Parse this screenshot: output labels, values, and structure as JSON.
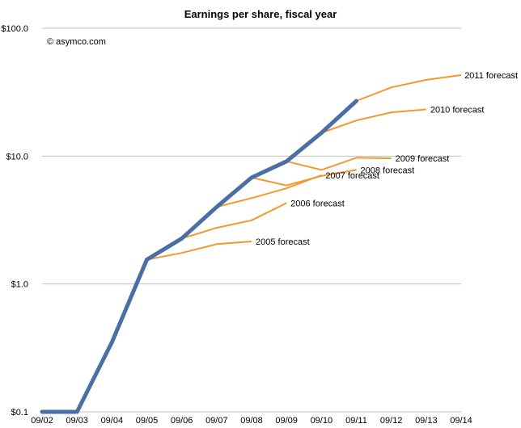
{
  "chart_data": {
    "type": "line",
    "title": "Earnings per share, fiscal year",
    "annotation": "© asymco.com",
    "y_scale": "log",
    "ylim": [
      0.1,
      100
    ],
    "y_ticks": [
      {
        "value": 0.1,
        "label": "$0.1"
      },
      {
        "value": 1,
        "label": "$1.0"
      },
      {
        "value": 10,
        "label": "$10.0"
      },
      {
        "value": 100,
        "label": "$100.0"
      }
    ],
    "categories": [
      "09/02",
      "09/03",
      "09/04",
      "09/05",
      "09/06",
      "09/07",
      "09/08",
      "09/09",
      "09/10",
      "09/11",
      "09/12",
      "09/13",
      "09/14"
    ],
    "grid": true,
    "colors": {
      "actual": "#4a6fa5",
      "forecast": "#f29a2e",
      "grid": "#bfbfbf"
    },
    "series": [
      {
        "kind": "actual",
        "points": [
          [
            "09/02",
            0.1
          ],
          [
            "09/03",
            0.1
          ],
          [
            "09/04",
            0.35
          ],
          [
            "09/05",
            1.55
          ],
          [
            "09/06",
            2.27
          ],
          [
            "09/07",
            4.0
          ],
          [
            "09/08",
            6.8
          ],
          [
            "09/09",
            9.1
          ],
          [
            "09/10",
            15.2
          ],
          [
            "09/11",
            27.0
          ]
        ]
      },
      {
        "name": "2005 forecast",
        "kind": "forecast",
        "points": [
          [
            "09/05",
            1.55
          ],
          [
            "09/06",
            1.75
          ],
          [
            "09/07",
            2.05
          ],
          [
            "09/08",
            2.15
          ]
        ]
      },
      {
        "name": "2006 forecast",
        "kind": "forecast",
        "points": [
          [
            "09/06",
            2.27
          ],
          [
            "09/07",
            2.75
          ],
          [
            "09/08",
            3.15
          ],
          [
            "09/09",
            4.3
          ]
        ]
      },
      {
        "name": "2007 forecast",
        "kind": "forecast",
        "points": [
          [
            "09/07",
            4.0
          ],
          [
            "09/08",
            4.7
          ],
          [
            "09/09",
            5.6
          ],
          [
            "09/10",
            7.1
          ]
        ]
      },
      {
        "name": "2008 forecast",
        "kind": "forecast",
        "points": [
          [
            "09/08",
            6.8
          ],
          [
            "09/09",
            5.9
          ],
          [
            "09/10",
            7.0
          ],
          [
            "09/11",
            7.8
          ]
        ]
      },
      {
        "name": "2009 forecast",
        "kind": "forecast",
        "points": [
          [
            "09/09",
            9.1
          ],
          [
            "09/10",
            7.8
          ],
          [
            "09/11",
            9.7
          ],
          [
            "09/12",
            9.6
          ]
        ]
      },
      {
        "name": "2010 forecast",
        "kind": "forecast",
        "points": [
          [
            "09/10",
            15.2
          ],
          [
            "09/11",
            19.0
          ],
          [
            "09/12",
            22.0
          ],
          [
            "09/13",
            23.2
          ]
        ]
      },
      {
        "name": "2011 forecast",
        "kind": "forecast",
        "points": [
          [
            "09/11",
            27.0
          ],
          [
            "09/12",
            34.5
          ],
          [
            "09/13",
            39.5
          ],
          [
            "09/14",
            43.0
          ]
        ]
      }
    ]
  }
}
